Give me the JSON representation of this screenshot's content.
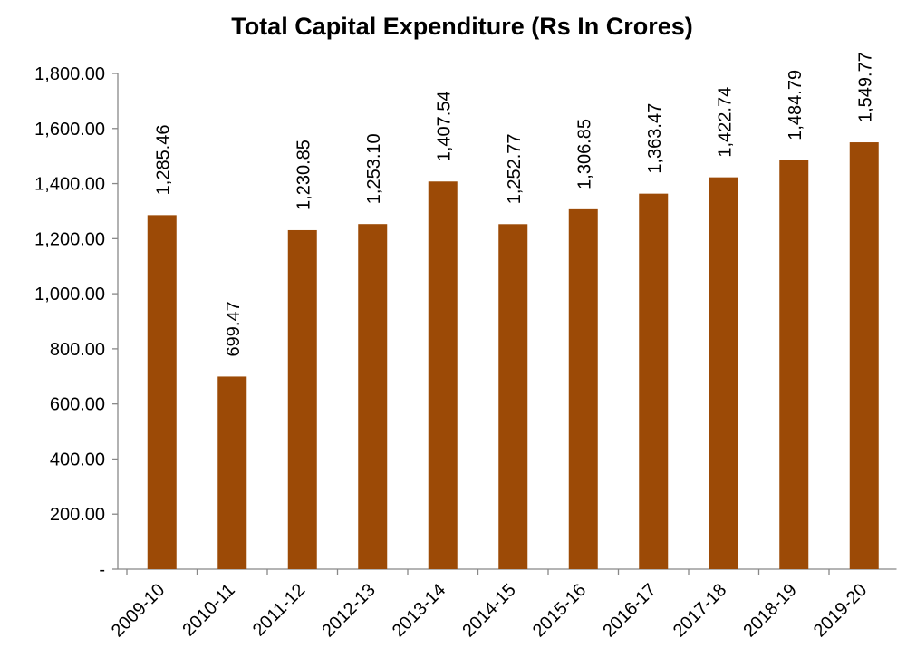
{
  "chart_data": {
    "type": "bar",
    "title": "Total Capital Expenditure (Rs In Crores)",
    "categories": [
      "2009-10",
      "2010-11",
      "2011-12",
      "2012-13",
      "2013-14",
      "2014-15",
      "2015-16",
      "2016-17",
      "2017-18",
      "2018-19",
      "2019-20"
    ],
    "values": [
      1285.46,
      699.47,
      1230.85,
      1253.1,
      1407.54,
      1252.77,
      1306.85,
      1363.47,
      1422.74,
      1484.79,
      1549.77
    ],
    "value_labels": [
      "1,285.46",
      "699.47",
      "1,230.85",
      "1,253.10",
      "1,407.54",
      "1,252.77",
      "1,306.85",
      "1,363.47",
      "1,422.74",
      "1,484.79",
      "1,549.77"
    ],
    "color": "#9c4a06",
    "ylim": [
      0,
      1800
    ],
    "yticks": [
      {
        "value": 0,
        "label": "-"
      },
      {
        "value": 200,
        "label": "200.00"
      },
      {
        "value": 400,
        "label": "400.00"
      },
      {
        "value": 600,
        "label": "600.00"
      },
      {
        "value": 800,
        "label": "800.00"
      },
      {
        "value": 1000,
        "label": "1,000.00"
      },
      {
        "value": 1200,
        "label": "1,200.00"
      },
      {
        "value": 1400,
        "label": "1,400.00"
      },
      {
        "value": 1600,
        "label": "1,600.00"
      },
      {
        "value": 1800,
        "label": "1,800.00"
      }
    ],
    "grid": false
  }
}
